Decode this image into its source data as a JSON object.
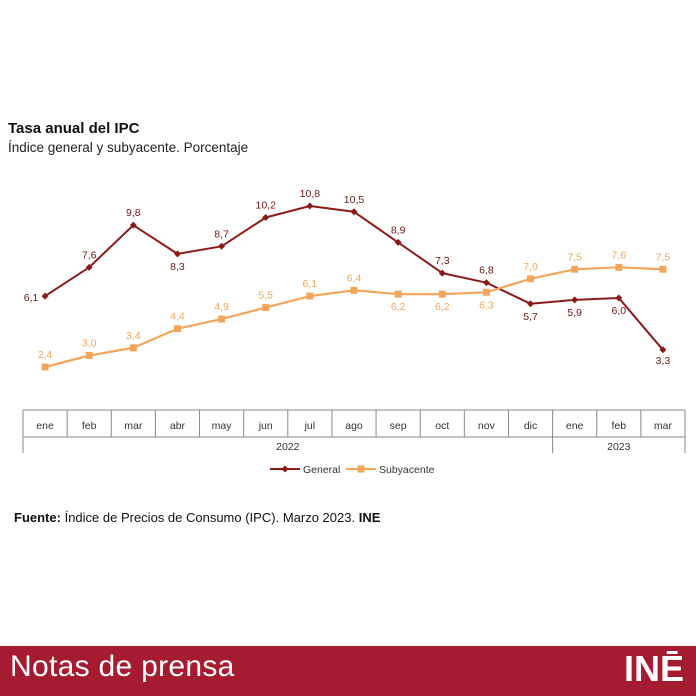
{
  "header": {
    "title": "Tasa anual del IPC",
    "subtitle": "Índice general y subyacente. Porcentaje"
  },
  "source": {
    "label": "Fuente:",
    "text": "Índice de Precios de Consumo (IPC).",
    "date": "Marzo 2023.",
    "org": "INE"
  },
  "footer": {
    "title": "Notas de prensa",
    "logo": "INĒ"
  },
  "colors": {
    "general": "#8b1a1a",
    "subyacente": "#f2a65a",
    "footer": "#a51b30"
  },
  "chart_data": {
    "type": "line",
    "title": "Tasa anual del IPC",
    "subtitle": "Índice general y subyacente. Porcentaje",
    "categories": [
      "ene",
      "feb",
      "mar",
      "abr",
      "may",
      "jun",
      "jul",
      "ago",
      "sep",
      "oct",
      "nov",
      "dic",
      "ene",
      "feb",
      "mar"
    ],
    "year_groups": [
      {
        "label": "2022",
        "months": 12
      },
      {
        "label": "2023",
        "months": 3
      }
    ],
    "series": [
      {
        "name": "General",
        "values": [
          6.1,
          7.6,
          9.8,
          8.3,
          8.7,
          10.2,
          10.8,
          10.5,
          8.9,
          7.3,
          6.8,
          5.7,
          5.9,
          6.0,
          3.3
        ],
        "labels": [
          "6,1",
          "7,6",
          "9,8",
          "8,3",
          "8,7",
          "10,2",
          "10,8",
          "10,5",
          "8,9",
          "7,3",
          "6,8",
          "5,7",
          "5,9",
          "6,0",
          "3,3"
        ]
      },
      {
        "name": "Subyacente",
        "values": [
          2.4,
          3.0,
          3.4,
          4.4,
          4.9,
          5.5,
          6.1,
          6.4,
          6.2,
          6.2,
          6.3,
          7.0,
          7.5,
          7.6,
          7.5
        ],
        "labels": [
          "2,4",
          "3,0",
          "3,4",
          "4,4",
          "4,9",
          "5,5",
          "6,1",
          "6,4",
          "6,2",
          "6,2",
          "6,3",
          "7,0",
          "7,5",
          "7,6",
          "7,5"
        ]
      }
    ],
    "ylim": [
      1.5,
      12
    ],
    "grid": false,
    "legend": "bottom"
  }
}
